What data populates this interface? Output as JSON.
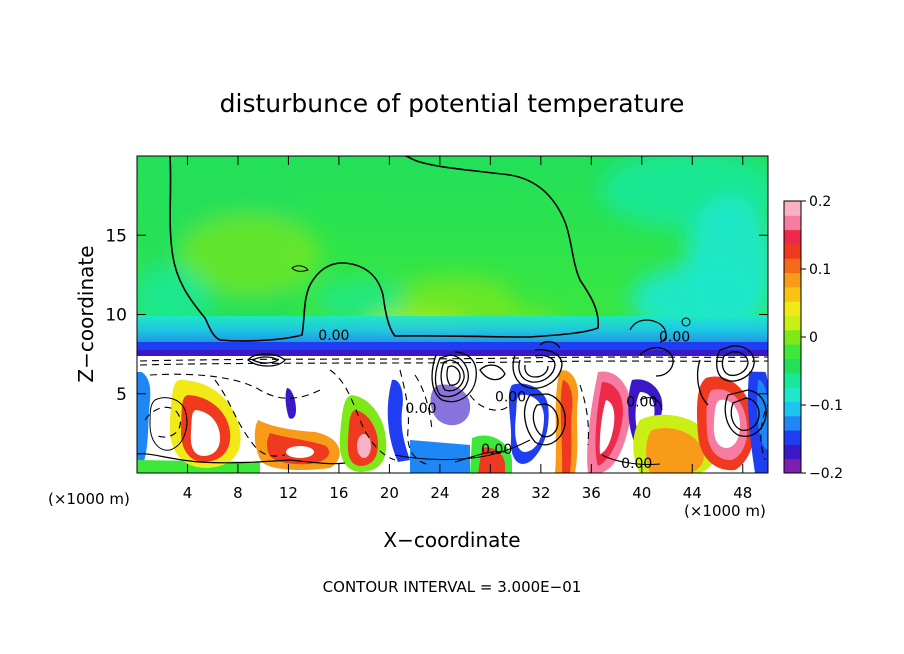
{
  "chart_data": {
    "type": "heatmap",
    "title": "disturbunce of potential temperature",
    "xlabel": "X−coordinate",
    "ylabel": "Z−coordinate",
    "x_unit": "(×1000 m)",
    "x_unit_right": "(×1000 m)",
    "footer": "CONTOUR INTERVAL = 3.000E−01",
    "xlim": [
      0,
      50
    ],
    "ylim": [
      0,
      20
    ],
    "x_ticks": [
      4,
      8,
      12,
      16,
      20,
      24,
      28,
      32,
      36,
      40,
      44,
      48
    ],
    "y_ticks": [
      5,
      10,
      15
    ],
    "colorbar": {
      "range": [
        -0.2,
        0.2
      ],
      "tick_values": [
        0.2,
        0.1,
        0,
        -0.1,
        -0.2
      ],
      "tick_labels": [
        "0.2",
        "0.1",
        "0",
        "−0.1",
        "−0.2"
      ],
      "colors": [
        "#7f1fb0",
        "#3a18c8",
        "#1f3ef2",
        "#1f86f5",
        "#1cc4ef",
        "#1ee8c9",
        "#19e898",
        "#22e05a",
        "#3ee83a",
        "#7ee818",
        "#c9ef14",
        "#f2ea16",
        "#f7c414",
        "#f79b18",
        "#f56a18",
        "#ef3a1f",
        "#ee2a4a",
        "#f57ba0",
        "#f9b1c4"
      ]
    },
    "contour_labels": [
      {
        "text": "0.00",
        "x": 15.6,
        "y": 8.4
      },
      {
        "text": "0.00",
        "x": 42.6,
        "y": 8.3
      },
      {
        "text": "0.00",
        "x": 29.6,
        "y": 4.5
      },
      {
        "text": "0.00",
        "x": 28.5,
        "y": 1.2
      },
      {
        "text": "0.00",
        "x": 39.6,
        "y": 0.3
      },
      {
        "text": "0.00",
        "x": 22.5,
        "y": 3.8
      },
      {
        "text": "0.00",
        "x": 40.0,
        "y": 4.2
      }
    ],
    "regions": {
      "upper_layer": {
        "z_range": [
          8.2,
          20
        ],
        "dominant_value": 0.0,
        "description_values": [
          -0.07,
          0.06
        ]
      },
      "inversion": {
        "z_range": [
          7.3,
          8.2
        ],
        "value_range": [
          -0.2,
          -0.1
        ]
      },
      "lower_layer": {
        "z_range": [
          0,
          7.3
        ],
        "value_range": [
          -0.2,
          0.2
        ]
      }
    }
  }
}
